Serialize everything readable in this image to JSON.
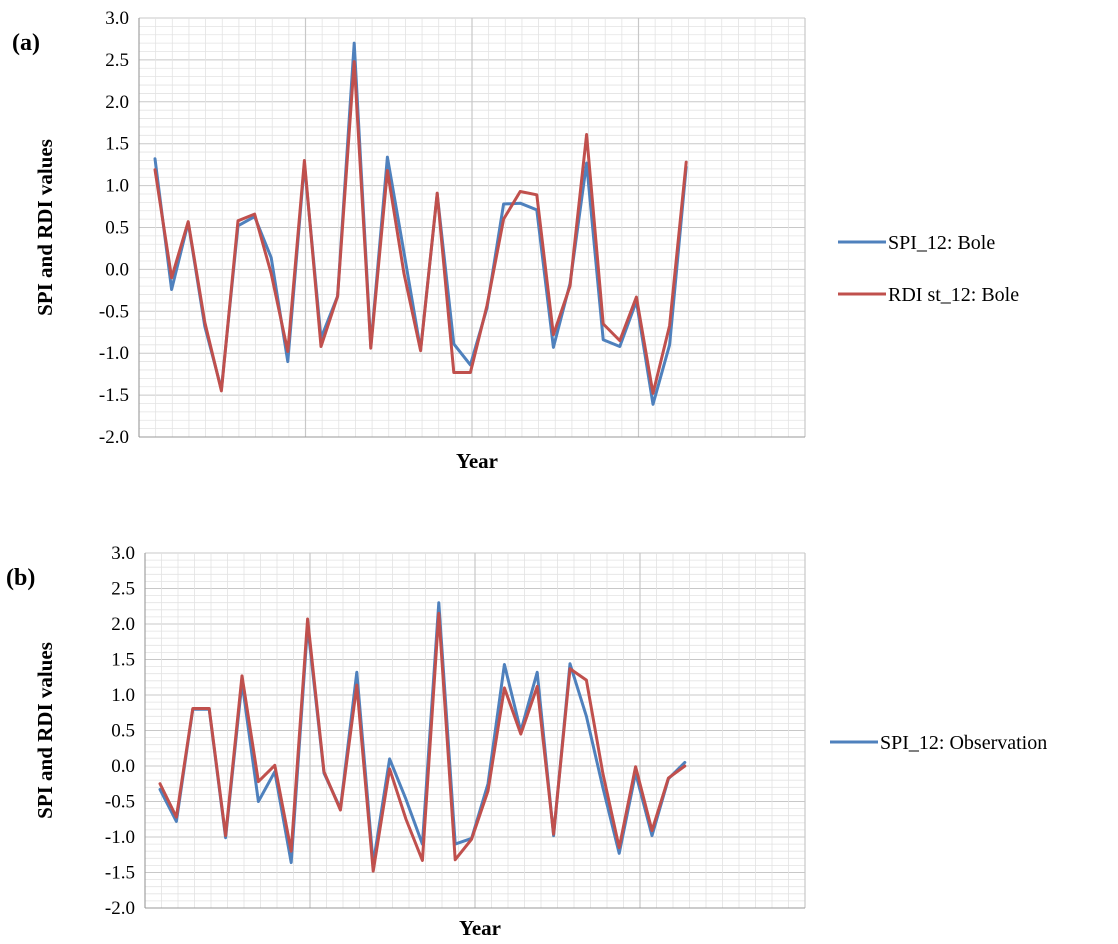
{
  "colors": {
    "spi": "#4f81bd",
    "rdi": "#c0504d",
    "grid_minor": "#e3e3e3",
    "grid_major": "#c8c8c8",
    "axis": "#9a9a9a"
  },
  "chart_data": [
    {
      "type": "line",
      "panel_label": "(a)",
      "xlabel": "Year",
      "ylabel": "SPI and RDI values",
      "ylim": [
        -2.0,
        3.0
      ],
      "yticks": [
        "3.0",
        "2.5",
        "2.0",
        "1.5",
        "1.0",
        "0.5",
        "0.0",
        "-0.5",
        "-1.0",
        "-1.5",
        "-2.0"
      ],
      "legend_position": "right",
      "series": [
        {
          "name": "SPI_12: Bole",
          "values": [
            1.32,
            -0.24,
            0.56,
            -0.68,
            -1.43,
            0.52,
            0.63,
            0.14,
            -1.1,
            1.26,
            -0.82,
            -0.32,
            2.7,
            -0.92,
            1.34,
            0.2,
            -0.96,
            0.9,
            -0.89,
            -1.14,
            -0.46,
            0.78,
            0.79,
            0.71,
            -0.93,
            -0.17,
            1.27,
            -0.84,
            -0.92,
            -0.38,
            -1.61,
            -0.9,
            1.22
          ]
        },
        {
          "name": "RDI st_12: Bole",
          "values": [
            1.19,
            -0.1,
            0.57,
            -0.63,
            -1.45,
            0.58,
            0.66,
            -0.05,
            -0.98,
            1.3,
            -0.92,
            -0.32,
            2.48,
            -0.94,
            1.18,
            -0.05,
            -0.97,
            0.91,
            -1.23,
            -1.23,
            -0.43,
            0.6,
            0.93,
            0.89,
            -0.78,
            -0.2,
            1.61,
            -0.65,
            -0.85,
            -0.33,
            -1.48,
            -0.67,
            1.28
          ]
        }
      ]
    },
    {
      "type": "line",
      "panel_label": "(b)",
      "xlabel": "Year",
      "ylabel": "SPI and RDI values",
      "ylim": [
        -2.0,
        3.0
      ],
      "yticks": [
        "3.0",
        "2.5",
        "2.0",
        "1.5",
        "1.0",
        "0.5",
        "0.0",
        "-0.5",
        "-1.0",
        "-1.5",
        "-2.0"
      ],
      "legend_position": "right",
      "series": [
        {
          "name": "SPI_12: Observation",
          "values": [
            -0.33,
            -0.78,
            0.8,
            0.8,
            -1.01,
            1.18,
            -0.5,
            -0.08,
            -1.36,
            1.98,
            -0.1,
            -0.6,
            1.32,
            -1.38,
            0.1,
            -0.47,
            -1.1,
            2.3,
            -1.1,
            -1.02,
            -0.25,
            1.43,
            0.49,
            1.32,
            -0.98,
            1.44,
            0.7,
            -0.3,
            -1.23,
            -0.1,
            -0.98,
            -0.18,
            0.05
          ]
        },
        {
          "values": [
            -0.25,
            -0.72,
            0.81,
            0.81,
            -0.98,
            1.27,
            -0.22,
            0.01,
            -1.2,
            2.07,
            -0.08,
            -0.62,
            1.14,
            -1.48,
            -0.04,
            -0.75,
            -1.33,
            2.15,
            -1.32,
            -1.03,
            -0.35,
            1.1,
            0.45,
            1.12,
            -0.96,
            1.37,
            1.21,
            -0.1,
            -1.15,
            -0.01,
            -0.91,
            -0.17,
            0.0
          ]
        }
      ]
    }
  ]
}
